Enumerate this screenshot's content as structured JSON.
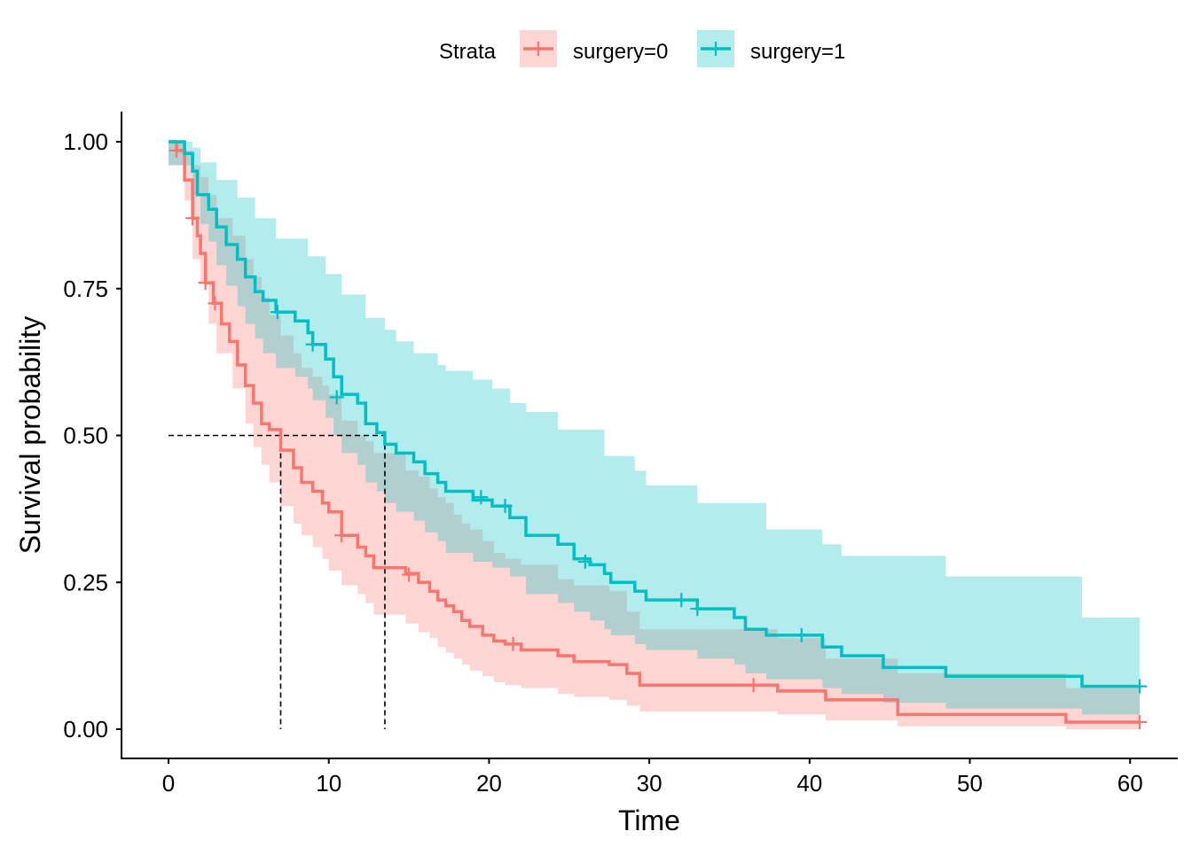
{
  "chart_data": {
    "type": "line",
    "subtype": "kaplan-meier step curve with confidence bands",
    "xlabel": "Time",
    "ylabel": "Survival probability",
    "xlim": [
      0,
      60.5
    ],
    "ylim": [
      0,
      1
    ],
    "x_ticks": [
      0,
      10,
      20,
      30,
      40,
      50,
      60
    ],
    "x_tick_labels": [
      "0",
      "10",
      "20",
      "30",
      "40",
      "50",
      "60"
    ],
    "y_ticks": [
      0,
      0.25,
      0.5,
      0.75,
      1
    ],
    "y_tick_labels": [
      "0.00",
      "0.25",
      "0.50",
      "0.75",
      "1.00"
    ],
    "grid": false,
    "legend": {
      "title": "Strata",
      "placement": "top"
    },
    "median_lines": [
      {
        "series": "surgery=0",
        "x": 7,
        "y": 0.5
      },
      {
        "series": "surgery=1",
        "x": 13.5,
        "y": 0.5
      }
    ],
    "series": [
      {
        "name": "surgery=0",
        "color": "#F8766D",
        "band_color": "#F8766D",
        "steps": [
          [
            0,
            1.0
          ],
          [
            0.5,
            0.985
          ],
          [
            1.0,
            0.935
          ],
          [
            1.5,
            0.87
          ],
          [
            1.8,
            0.84
          ],
          [
            2.0,
            0.81
          ],
          [
            2.3,
            0.76
          ],
          [
            2.8,
            0.725
          ],
          [
            3.3,
            0.69
          ],
          [
            3.8,
            0.66
          ],
          [
            4.3,
            0.62
          ],
          [
            4.8,
            0.585
          ],
          [
            5.3,
            0.555
          ],
          [
            5.8,
            0.52
          ],
          [
            6.3,
            0.51
          ],
          [
            7.0,
            0.475
          ],
          [
            7.8,
            0.445
          ],
          [
            8.3,
            0.42
          ],
          [
            9.0,
            0.405
          ],
          [
            9.6,
            0.385
          ],
          [
            10.0,
            0.37
          ],
          [
            10.8,
            0.33
          ],
          [
            11.8,
            0.31
          ],
          [
            12.3,
            0.295
          ],
          [
            12.8,
            0.275
          ],
          [
            14.8,
            0.265
          ],
          [
            15.6,
            0.25
          ],
          [
            16.3,
            0.235
          ],
          [
            16.8,
            0.22
          ],
          [
            17.3,
            0.21
          ],
          [
            17.8,
            0.2
          ],
          [
            18.3,
            0.185
          ],
          [
            18.8,
            0.175
          ],
          [
            19.6,
            0.16
          ],
          [
            20.3,
            0.15
          ],
          [
            21.0,
            0.145
          ],
          [
            22.0,
            0.135
          ],
          [
            24.3,
            0.125
          ],
          [
            25.3,
            0.115
          ],
          [
            27.5,
            0.11
          ],
          [
            28.6,
            0.095
          ],
          [
            29.4,
            0.075
          ],
          [
            38.0,
            0.065
          ],
          [
            41.0,
            0.05
          ],
          [
            45.5,
            0.025
          ],
          [
            56.0,
            0.012
          ],
          [
            60.6,
            0.012
          ]
        ],
        "ci_upper": [
          [
            0,
            1.0
          ],
          [
            1.0,
            0.985
          ],
          [
            1.5,
            0.96
          ],
          [
            2.0,
            0.94
          ],
          [
            2.5,
            0.91
          ],
          [
            3.0,
            0.87
          ],
          [
            4.0,
            0.84
          ],
          [
            4.8,
            0.8
          ],
          [
            5.3,
            0.77
          ],
          [
            5.8,
            0.735
          ],
          [
            6.3,
            0.705
          ],
          [
            7.0,
            0.67
          ],
          [
            7.8,
            0.64
          ],
          [
            8.3,
            0.615
          ],
          [
            9.0,
            0.6
          ],
          [
            9.6,
            0.585
          ],
          [
            10.0,
            0.57
          ],
          [
            10.8,
            0.525
          ],
          [
            11.8,
            0.5
          ],
          [
            12.3,
            0.49
          ],
          [
            12.8,
            0.47
          ],
          [
            14.8,
            0.44
          ],
          [
            15.6,
            0.43
          ],
          [
            16.3,
            0.41
          ],
          [
            16.8,
            0.395
          ],
          [
            17.3,
            0.385
          ],
          [
            17.8,
            0.365
          ],
          [
            18.3,
            0.35
          ],
          [
            18.8,
            0.34
          ],
          [
            19.6,
            0.32
          ],
          [
            20.3,
            0.3
          ],
          [
            21.0,
            0.29
          ],
          [
            22.0,
            0.28
          ],
          [
            24.3,
            0.255
          ],
          [
            25.3,
            0.245
          ],
          [
            27.5,
            0.235
          ],
          [
            28.6,
            0.2
          ],
          [
            29.4,
            0.17
          ],
          [
            38.0,
            0.155
          ],
          [
            41.0,
            0.12
          ],
          [
            45.5,
            0.095
          ],
          [
            56.0,
            0.07
          ],
          [
            60.6,
            0.07
          ]
        ],
        "ci_lower": [
          [
            0,
            0.96
          ],
          [
            1.0,
            0.9
          ],
          [
            1.5,
            0.8
          ],
          [
            2.0,
            0.76
          ],
          [
            2.5,
            0.69
          ],
          [
            3.0,
            0.64
          ],
          [
            4.0,
            0.58
          ],
          [
            4.8,
            0.52
          ],
          [
            5.3,
            0.48
          ],
          [
            5.8,
            0.45
          ],
          [
            6.3,
            0.42
          ],
          [
            7.0,
            0.38
          ],
          [
            7.8,
            0.35
          ],
          [
            8.3,
            0.33
          ],
          [
            9.0,
            0.31
          ],
          [
            9.6,
            0.29
          ],
          [
            10.0,
            0.27
          ],
          [
            10.8,
            0.245
          ],
          [
            11.8,
            0.23
          ],
          [
            12.3,
            0.215
          ],
          [
            12.8,
            0.195
          ],
          [
            14.8,
            0.18
          ],
          [
            15.6,
            0.165
          ],
          [
            16.3,
            0.155
          ],
          [
            16.8,
            0.14
          ],
          [
            17.3,
            0.13
          ],
          [
            17.8,
            0.12
          ],
          [
            18.3,
            0.11
          ],
          [
            18.8,
            0.1
          ],
          [
            19.6,
            0.09
          ],
          [
            20.3,
            0.08
          ],
          [
            21.0,
            0.075
          ],
          [
            22.0,
            0.07
          ],
          [
            24.3,
            0.06
          ],
          [
            25.3,
            0.055
          ],
          [
            27.5,
            0.05
          ],
          [
            28.6,
            0.04
          ],
          [
            29.4,
            0.03
          ],
          [
            38.0,
            0.025
          ],
          [
            41.0,
            0.015
          ],
          [
            45.5,
            0.005
          ],
          [
            56.0,
            0.0
          ],
          [
            60.6,
            0.0
          ]
        ],
        "censor_marks": [
          [
            0.5,
            0.985
          ],
          [
            1.5,
            0.87
          ],
          [
            2.3,
            0.76
          ],
          [
            2.9,
            0.725
          ],
          [
            10.8,
            0.33
          ],
          [
            15.0,
            0.263
          ],
          [
            21.5,
            0.145
          ],
          [
            36.5,
            0.075
          ],
          [
            60.6,
            0.012
          ]
        ]
      },
      {
        "name": "surgery=1",
        "color": "#00BFC4",
        "band_color": "#00BFC4",
        "steps": [
          [
            0,
            1.0
          ],
          [
            1.0,
            0.98
          ],
          [
            1.5,
            0.95
          ],
          [
            1.8,
            0.91
          ],
          [
            2.5,
            0.885
          ],
          [
            3.0,
            0.855
          ],
          [
            3.6,
            0.825
          ],
          [
            4.3,
            0.8
          ],
          [
            4.8,
            0.77
          ],
          [
            5.4,
            0.745
          ],
          [
            5.9,
            0.73
          ],
          [
            6.7,
            0.71
          ],
          [
            7.9,
            0.695
          ],
          [
            8.7,
            0.675
          ],
          [
            9.0,
            0.655
          ],
          [
            9.8,
            0.63
          ],
          [
            10.3,
            0.6
          ],
          [
            10.8,
            0.57
          ],
          [
            11.8,
            0.555
          ],
          [
            12.3,
            0.52
          ],
          [
            13.0,
            0.505
          ],
          [
            13.5,
            0.485
          ],
          [
            14.2,
            0.47
          ],
          [
            15.3,
            0.455
          ],
          [
            16.0,
            0.435
          ],
          [
            16.8,
            0.42
          ],
          [
            17.3,
            0.405
          ],
          [
            19.0,
            0.39
          ],
          [
            20.2,
            0.38
          ],
          [
            21.3,
            0.36
          ],
          [
            22.3,
            0.33
          ],
          [
            24.3,
            0.315
          ],
          [
            25.3,
            0.29
          ],
          [
            26.3,
            0.28
          ],
          [
            27.2,
            0.265
          ],
          [
            27.6,
            0.25
          ],
          [
            29.1,
            0.235
          ],
          [
            29.8,
            0.22
          ],
          [
            33.0,
            0.205
          ],
          [
            35.3,
            0.19
          ],
          [
            36.0,
            0.17
          ],
          [
            37.3,
            0.16
          ],
          [
            40.8,
            0.14
          ],
          [
            42.0,
            0.125
          ],
          [
            44.6,
            0.105
          ],
          [
            48.5,
            0.09
          ],
          [
            57.0,
            0.073
          ],
          [
            60.6,
            0.073
          ]
        ],
        "ci_upper": [
          [
            0,
            1.0
          ],
          [
            1.5,
            0.99
          ],
          [
            2.0,
            0.965
          ],
          [
            3.0,
            0.935
          ],
          [
            4.3,
            0.905
          ],
          [
            5.4,
            0.87
          ],
          [
            6.7,
            0.835
          ],
          [
            8.7,
            0.805
          ],
          [
            9.8,
            0.775
          ],
          [
            10.8,
            0.74
          ],
          [
            12.3,
            0.7
          ],
          [
            13.5,
            0.68
          ],
          [
            14.2,
            0.66
          ],
          [
            15.3,
            0.64
          ],
          [
            16.8,
            0.62
          ],
          [
            17.3,
            0.61
          ],
          [
            19.0,
            0.595
          ],
          [
            20.2,
            0.58
          ],
          [
            21.3,
            0.555
          ],
          [
            22.3,
            0.54
          ],
          [
            24.3,
            0.51
          ],
          [
            27.2,
            0.465
          ],
          [
            29.1,
            0.44
          ],
          [
            29.8,
            0.415
          ],
          [
            33.0,
            0.385
          ],
          [
            37.3,
            0.34
          ],
          [
            40.8,
            0.315
          ],
          [
            42.0,
            0.295
          ],
          [
            48.5,
            0.26
          ],
          [
            57.0,
            0.19
          ],
          [
            60.6,
            0.19
          ]
        ],
        "ci_lower": [
          [
            0,
            0.96
          ],
          [
            1.5,
            0.91
          ],
          [
            2.0,
            0.86
          ],
          [
            2.5,
            0.83
          ],
          [
            3.0,
            0.79
          ],
          [
            3.6,
            0.755
          ],
          [
            4.3,
            0.72
          ],
          [
            4.8,
            0.69
          ],
          [
            5.4,
            0.665
          ],
          [
            5.9,
            0.64
          ],
          [
            6.7,
            0.615
          ],
          [
            7.9,
            0.6
          ],
          [
            8.7,
            0.58
          ],
          [
            9.0,
            0.56
          ],
          [
            9.8,
            0.53
          ],
          [
            10.3,
            0.5
          ],
          [
            10.8,
            0.47
          ],
          [
            11.8,
            0.45
          ],
          [
            12.3,
            0.42
          ],
          [
            13.0,
            0.405
          ],
          [
            13.5,
            0.385
          ],
          [
            14.2,
            0.37
          ],
          [
            15.3,
            0.355
          ],
          [
            16.0,
            0.335
          ],
          [
            16.8,
            0.32
          ],
          [
            17.3,
            0.3
          ],
          [
            19.0,
            0.285
          ],
          [
            20.2,
            0.275
          ],
          [
            21.3,
            0.26
          ],
          [
            22.3,
            0.23
          ],
          [
            24.3,
            0.215
          ],
          [
            25.3,
            0.2
          ],
          [
            26.3,
            0.185
          ],
          [
            27.2,
            0.17
          ],
          [
            27.6,
            0.16
          ],
          [
            29.1,
            0.145
          ],
          [
            29.8,
            0.135
          ],
          [
            33.0,
            0.12
          ],
          [
            35.3,
            0.11
          ],
          [
            36.0,
            0.095
          ],
          [
            37.3,
            0.085
          ],
          [
            40.8,
            0.07
          ],
          [
            42.0,
            0.06
          ],
          [
            44.6,
            0.045
          ],
          [
            48.5,
            0.035
          ],
          [
            57.0,
            0.025
          ],
          [
            60.6,
            0.025
          ]
        ],
        "censor_marks": [
          [
            6.8,
            0.71
          ],
          [
            9.0,
            0.655
          ],
          [
            10.5,
            0.565
          ],
          [
            19.5,
            0.395
          ],
          [
            21.0,
            0.38
          ],
          [
            26.0,
            0.285
          ],
          [
            32.0,
            0.22
          ],
          [
            33.0,
            0.205
          ],
          [
            39.5,
            0.16
          ],
          [
            60.6,
            0.073
          ]
        ]
      }
    ]
  }
}
